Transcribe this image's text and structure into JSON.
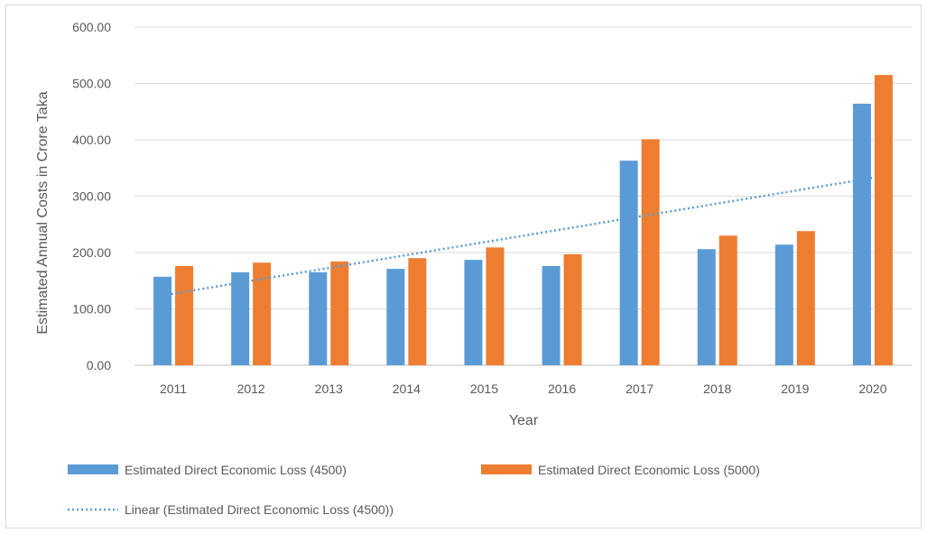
{
  "chart_data": {
    "type": "bar",
    "categories": [
      "2011",
      "2012",
      "2013",
      "2014",
      "2015",
      "2016",
      "2017",
      "2018",
      "2019",
      "2020"
    ],
    "series": [
      {
        "name": "Estimated Direct Economic Loss (4500)",
        "color": "#5b9bd5",
        "values": [
          157,
          165,
          165,
          171,
          187,
          176,
          363,
          206,
          214,
          464
        ]
      },
      {
        "name": "Estimated Direct Economic Loss (5000)",
        "color": "#ed7d31",
        "values": [
          176,
          182,
          184,
          190,
          209,
          197,
          401,
          230,
          238,
          515
        ]
      }
    ],
    "trendline": {
      "name": "Linear (Estimated Direct Economic Loss (4500))",
      "color": "#5b9bd5",
      "series": "Estimated Direct Economic Loss (4500)",
      "style": "dotted"
    },
    "xlabel": "Year",
    "ylabel": "Estimated Annual Costs in Crore Taka",
    "ylim": [
      0,
      600
    ],
    "yticks": [
      "0.00",
      "100.00",
      "200.00",
      "300.00",
      "400.00",
      "500.00",
      "600.00"
    ],
    "grid": true,
    "legend_position": "bottom"
  }
}
